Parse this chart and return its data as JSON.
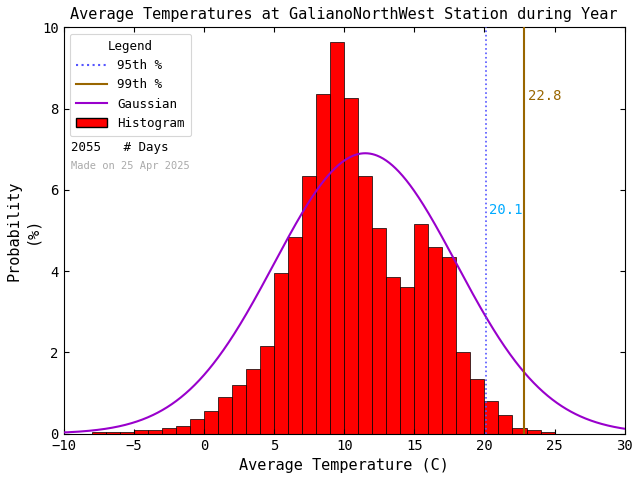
{
  "title": "Average Temperatures at GalianoNorthWest Station during Year",
  "xlabel": "Average Temperature (C)",
  "ylabel": "Probability\n(%)",
  "xlim": [
    -10,
    30
  ],
  "ylim": [
    0,
    10
  ],
  "bin_edges": [
    -8,
    -7,
    -6,
    -5,
    -4,
    -3,
    -2,
    -1,
    0,
    1,
    2,
    3,
    4,
    5,
    6,
    7,
    8,
    9,
    10,
    11,
    12,
    13,
    14,
    15,
    16,
    17,
    18,
    19,
    20,
    21,
    22,
    23,
    24,
    25,
    26,
    27,
    28
  ],
  "bin_probs": [
    0.05,
    0.05,
    0.05,
    0.1,
    0.1,
    0.15,
    0.2,
    0.35,
    0.55,
    0.9,
    1.2,
    1.6,
    2.15,
    3.95,
    4.85,
    6.35,
    8.35,
    9.65,
    8.25,
    6.35,
    5.05,
    3.85,
    3.6,
    5.15,
    4.6,
    4.35,
    2.0,
    1.35,
    0.8,
    0.45,
    0.15,
    0.1,
    0.05,
    0.0,
    0.0,
    0.0,
    0.0
  ],
  "percentile_95": 20.1,
  "percentile_99": 22.8,
  "gauss_mean": 11.5,
  "gauss_std": 6.5,
  "gauss_peak": 6.9,
  "n_days": 2055,
  "bar_color": "#ff0000",
  "bar_edge_color": "#000000",
  "gauss_color": "#9900cc",
  "pct95_color": "#5555ff",
  "pct99_color": "#996600",
  "pct95_label_color": "#00aaff",
  "pct99_label_color": "#996600",
  "made_on_text": "Made on 25 Apr 2025",
  "made_on_color": "#aaaaaa",
  "background_color": "#ffffff"
}
